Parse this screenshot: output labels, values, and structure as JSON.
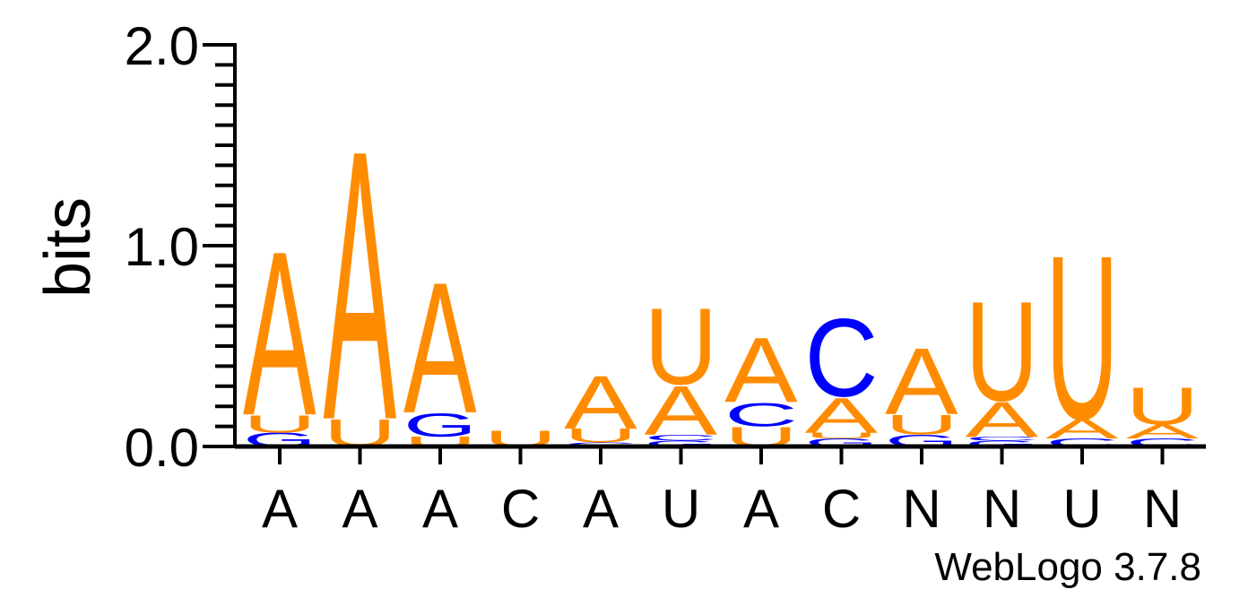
{
  "chart_data": {
    "type": "sequence-logo",
    "ylabel": "bits",
    "ylim": [
      0,
      2.0
    ],
    "yticks": [
      "0.0",
      "1.0",
      "2.0"
    ],
    "xtick_labels": [
      "A",
      "A",
      "A",
      "C",
      "A",
      "U",
      "A",
      "C",
      "N",
      "N",
      "U",
      "N"
    ],
    "colors": {
      "A": "#ff8c00",
      "U": "#ff8c00",
      "C": "#0000ff",
      "G": "#0000ff"
    },
    "positions": [
      {
        "label": "A",
        "stack": [
          {
            "letter": "G",
            "bits": 0.07
          },
          {
            "letter": "U",
            "bits": 0.09
          },
          {
            "letter": "A",
            "bits": 0.84
          }
        ]
      },
      {
        "label": "A",
        "stack": [
          {
            "letter": "U",
            "bits": 0.14
          },
          {
            "letter": "A",
            "bits": 1.38
          }
        ]
      },
      {
        "label": "A",
        "stack": [
          {
            "letter": "U",
            "bits": 0.05
          },
          {
            "letter": "G",
            "bits": 0.12
          },
          {
            "letter": "A",
            "bits": 0.67
          }
        ]
      },
      {
        "label": "C",
        "stack": [
          {
            "letter": "U",
            "bits": 0.08
          }
        ]
      },
      {
        "label": "A",
        "stack": [
          {
            "letter": "C",
            "bits": 0.02
          },
          {
            "letter": "U",
            "bits": 0.07
          },
          {
            "letter": "A",
            "bits": 0.27
          }
        ]
      },
      {
        "label": "U",
        "stack": [
          {
            "letter": "G",
            "bits": 0.03
          },
          {
            "letter": "C",
            "bits": 0.03
          },
          {
            "letter": "A",
            "bits": 0.25
          },
          {
            "letter": "U",
            "bits": 0.39
          }
        ]
      },
      {
        "label": "A",
        "stack": [
          {
            "letter": "U",
            "bits": 0.1
          },
          {
            "letter": "C",
            "bits": 0.12
          },
          {
            "letter": "A",
            "bits": 0.33
          }
        ]
      },
      {
        "label": "C",
        "stack": [
          {
            "letter": "G",
            "bits": 0.04
          },
          {
            "letter": "U",
            "bits": 0.03
          },
          {
            "letter": "A",
            "bits": 0.18
          },
          {
            "letter": "C",
            "bits": 0.4
          }
        ]
      },
      {
        "label": "N",
        "stack": [
          {
            "letter": "G",
            "bits": 0.06
          },
          {
            "letter": "U",
            "bits": 0.1
          },
          {
            "letter": "A",
            "bits": 0.34
          }
        ]
      },
      {
        "label": "N",
        "stack": [
          {
            "letter": "G",
            "bits": 0.03
          },
          {
            "letter": "C",
            "bits": 0.02
          },
          {
            "letter": "A",
            "bits": 0.18
          },
          {
            "letter": "U",
            "bits": 0.51
          }
        ]
      },
      {
        "label": "U",
        "stack": [
          {
            "letter": "C",
            "bits": 0.04
          },
          {
            "letter": "A",
            "bits": 0.1
          },
          {
            "letter": "U",
            "bits": 0.84
          }
        ]
      },
      {
        "label": "N",
        "stack": [
          {
            "letter": "C",
            "bits": 0.04
          },
          {
            "letter": "A",
            "bits": 0.07
          },
          {
            "letter": "U",
            "bits": 0.19
          }
        ]
      }
    ]
  },
  "footer": {
    "credit": "WebLogo 3.7.8"
  }
}
